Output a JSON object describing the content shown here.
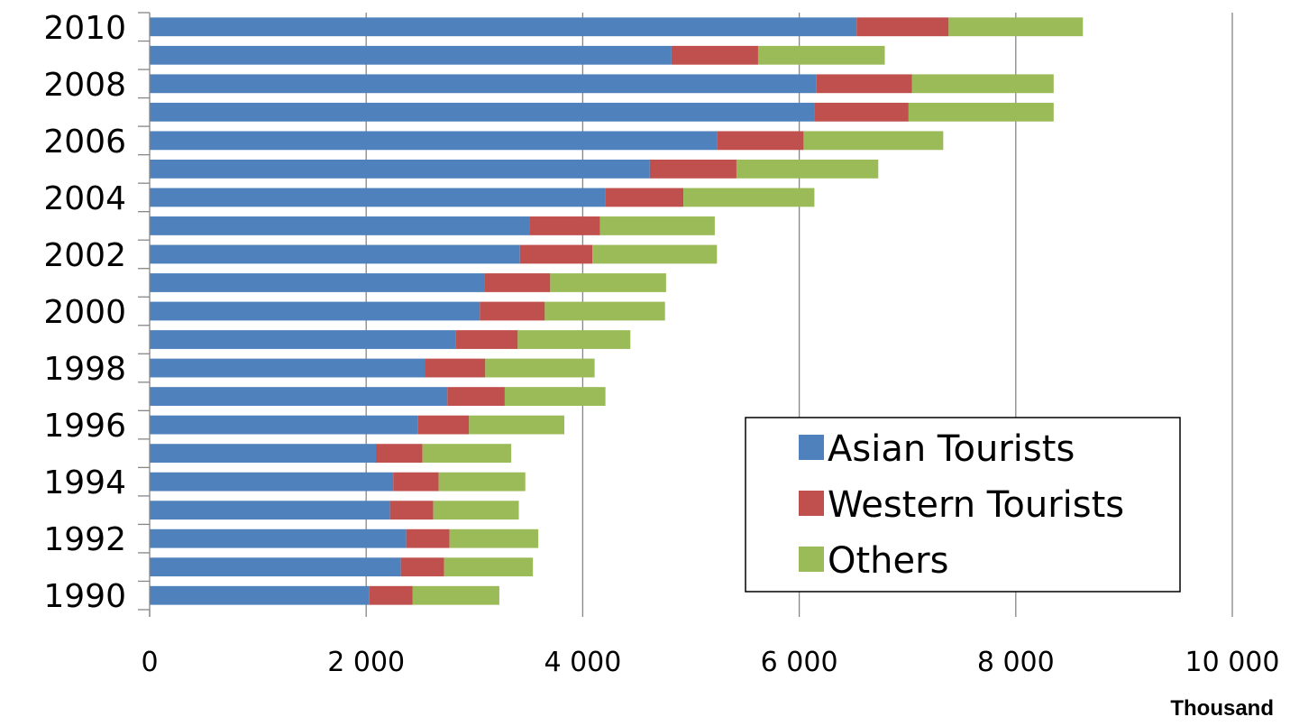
{
  "chart_data": {
    "type": "bar",
    "orientation": "horizontal",
    "stacked": true,
    "title": "",
    "xlabel": "Thousand",
    "ylabel": "",
    "xlim": [
      0,
      10000
    ],
    "x_ticks": [
      0,
      2000,
      4000,
      6000,
      8000,
      10000
    ],
    "x_tick_labels": [
      "0",
      "2 000",
      "4 000",
      "6 000",
      "8 000",
      "10 000"
    ],
    "categories": [
      "1990",
      "1991",
      "1992",
      "1993",
      "1994",
      "1995",
      "1996",
      "1997",
      "1998",
      "1999",
      "2000",
      "2001",
      "2002",
      "2003",
      "2004",
      "2005",
      "2006",
      "2007",
      "2008",
      "2009",
      "2010"
    ],
    "category_labels": [
      "1990",
      "",
      "1992",
      "",
      "1994",
      "",
      "1996",
      "",
      "1998",
      "",
      "2000",
      "",
      "2002",
      "",
      "2004",
      "",
      "2006",
      "",
      "2008",
      "",
      "2010"
    ],
    "grid": "vertical",
    "legend_position": "bottom-right",
    "series": [
      {
        "name": "Asian Tourists",
        "color": "#4f81bd",
        "values": [
          2030,
          2320,
          2370,
          2220,
          2250,
          2090,
          2480,
          2750,
          2540,
          2830,
          3050,
          3090,
          3420,
          3510,
          4210,
          4620,
          5240,
          6140,
          6160,
          4820,
          6530
        ]
      },
      {
        "name": "Western Tourists",
        "color": "#c0504d",
        "values": [
          400,
          400,
          400,
          400,
          420,
          430,
          470,
          530,
          560,
          570,
          600,
          610,
          670,
          650,
          720,
          800,
          800,
          870,
          880,
          800,
          850
        ]
      },
      {
        "name": "Others",
        "color": "#9bbb59",
        "values": [
          800,
          820,
          820,
          790,
          800,
          820,
          880,
          930,
          1010,
          1040,
          1110,
          1070,
          1150,
          1060,
          1210,
          1310,
          1290,
          1340,
          1310,
          1170,
          1240
        ]
      }
    ]
  }
}
